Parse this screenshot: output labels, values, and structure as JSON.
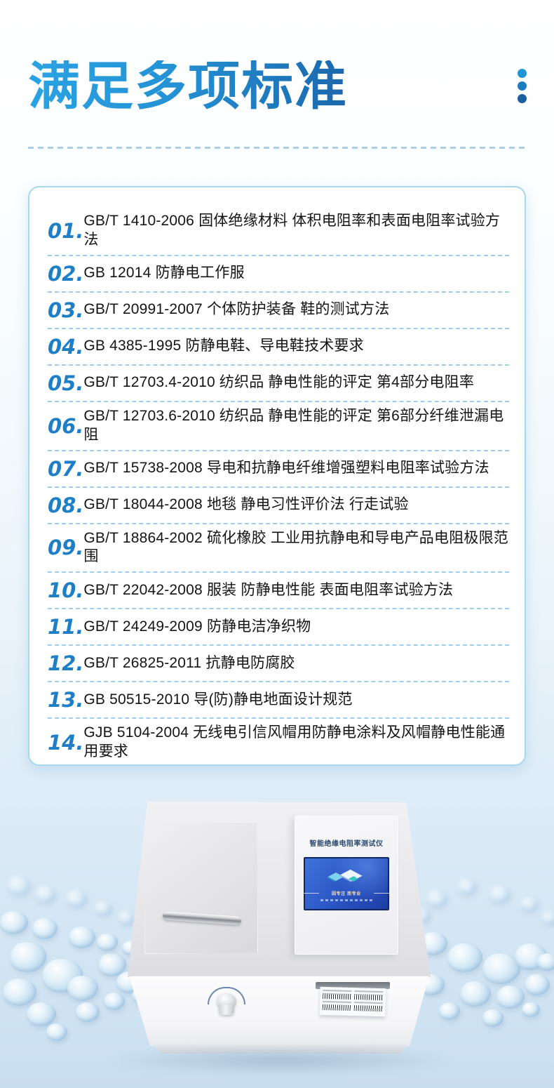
{
  "header": {
    "title": "满足多项标准"
  },
  "standards": [
    {
      "num": "01.",
      "text": "GB/T 1410-2006 固体绝缘材料 体积电阻率和表面电阻率试验方法"
    },
    {
      "num": "02.",
      "text": "GB 12014 防静电工作服"
    },
    {
      "num": "03.",
      "text": "GB/T 20991-2007 个体防护装备 鞋的测试方法"
    },
    {
      "num": "04.",
      "text": "GB 4385-1995 防静电鞋、导电鞋技术要求"
    },
    {
      "num": "05.",
      "text": "GB/T 12703.4-2010 纺织品 静电性能的评定 第4部分电阻率"
    },
    {
      "num": "06.",
      "text": "GB/T 12703.6-2010 纺织品 静电性能的评定 第6部分纤维泄漏电阻"
    },
    {
      "num": "07.",
      "text": "GB/T 15738-2008 导电和抗静电纤维增强塑料电阻率试验方法"
    },
    {
      "num": "08.",
      "text": "GB/T 18044-2008 地毯 静电习性评价法 行走试验"
    },
    {
      "num": "09.",
      "text": "GB/T 18864-2002 硫化橡胶 工业用抗静电和导电产品电阻极限范围"
    },
    {
      "num": "10.",
      "text": "GB/T 22042-2008 服装 防静电性能 表面电阻率试验方法"
    },
    {
      "num": "11.",
      "text": "GB/T 24249-2009 防静电洁净织物"
    },
    {
      "num": "12.",
      "text": "GB/T 26825-2011 抗静电防腐胶"
    },
    {
      "num": "13.",
      "text": "GB 50515-2010 导(防)静电地面设计规范"
    },
    {
      "num": "14.",
      "text": "GJB 5104-2004 无线电引信风帽用防静电涂料及风帽静电性能通用要求"
    }
  ],
  "device": {
    "panel_title": "智能绝缘电阻率测试仪",
    "screen_slogan": "因专注 而专业"
  },
  "colors": {
    "accent_light": "#2ba3e3",
    "accent_dark": "#1b67ad",
    "number_blue": "#1e7ec6",
    "dash_blue": "#9fcdee",
    "card_border": "#a6d8f1"
  }
}
